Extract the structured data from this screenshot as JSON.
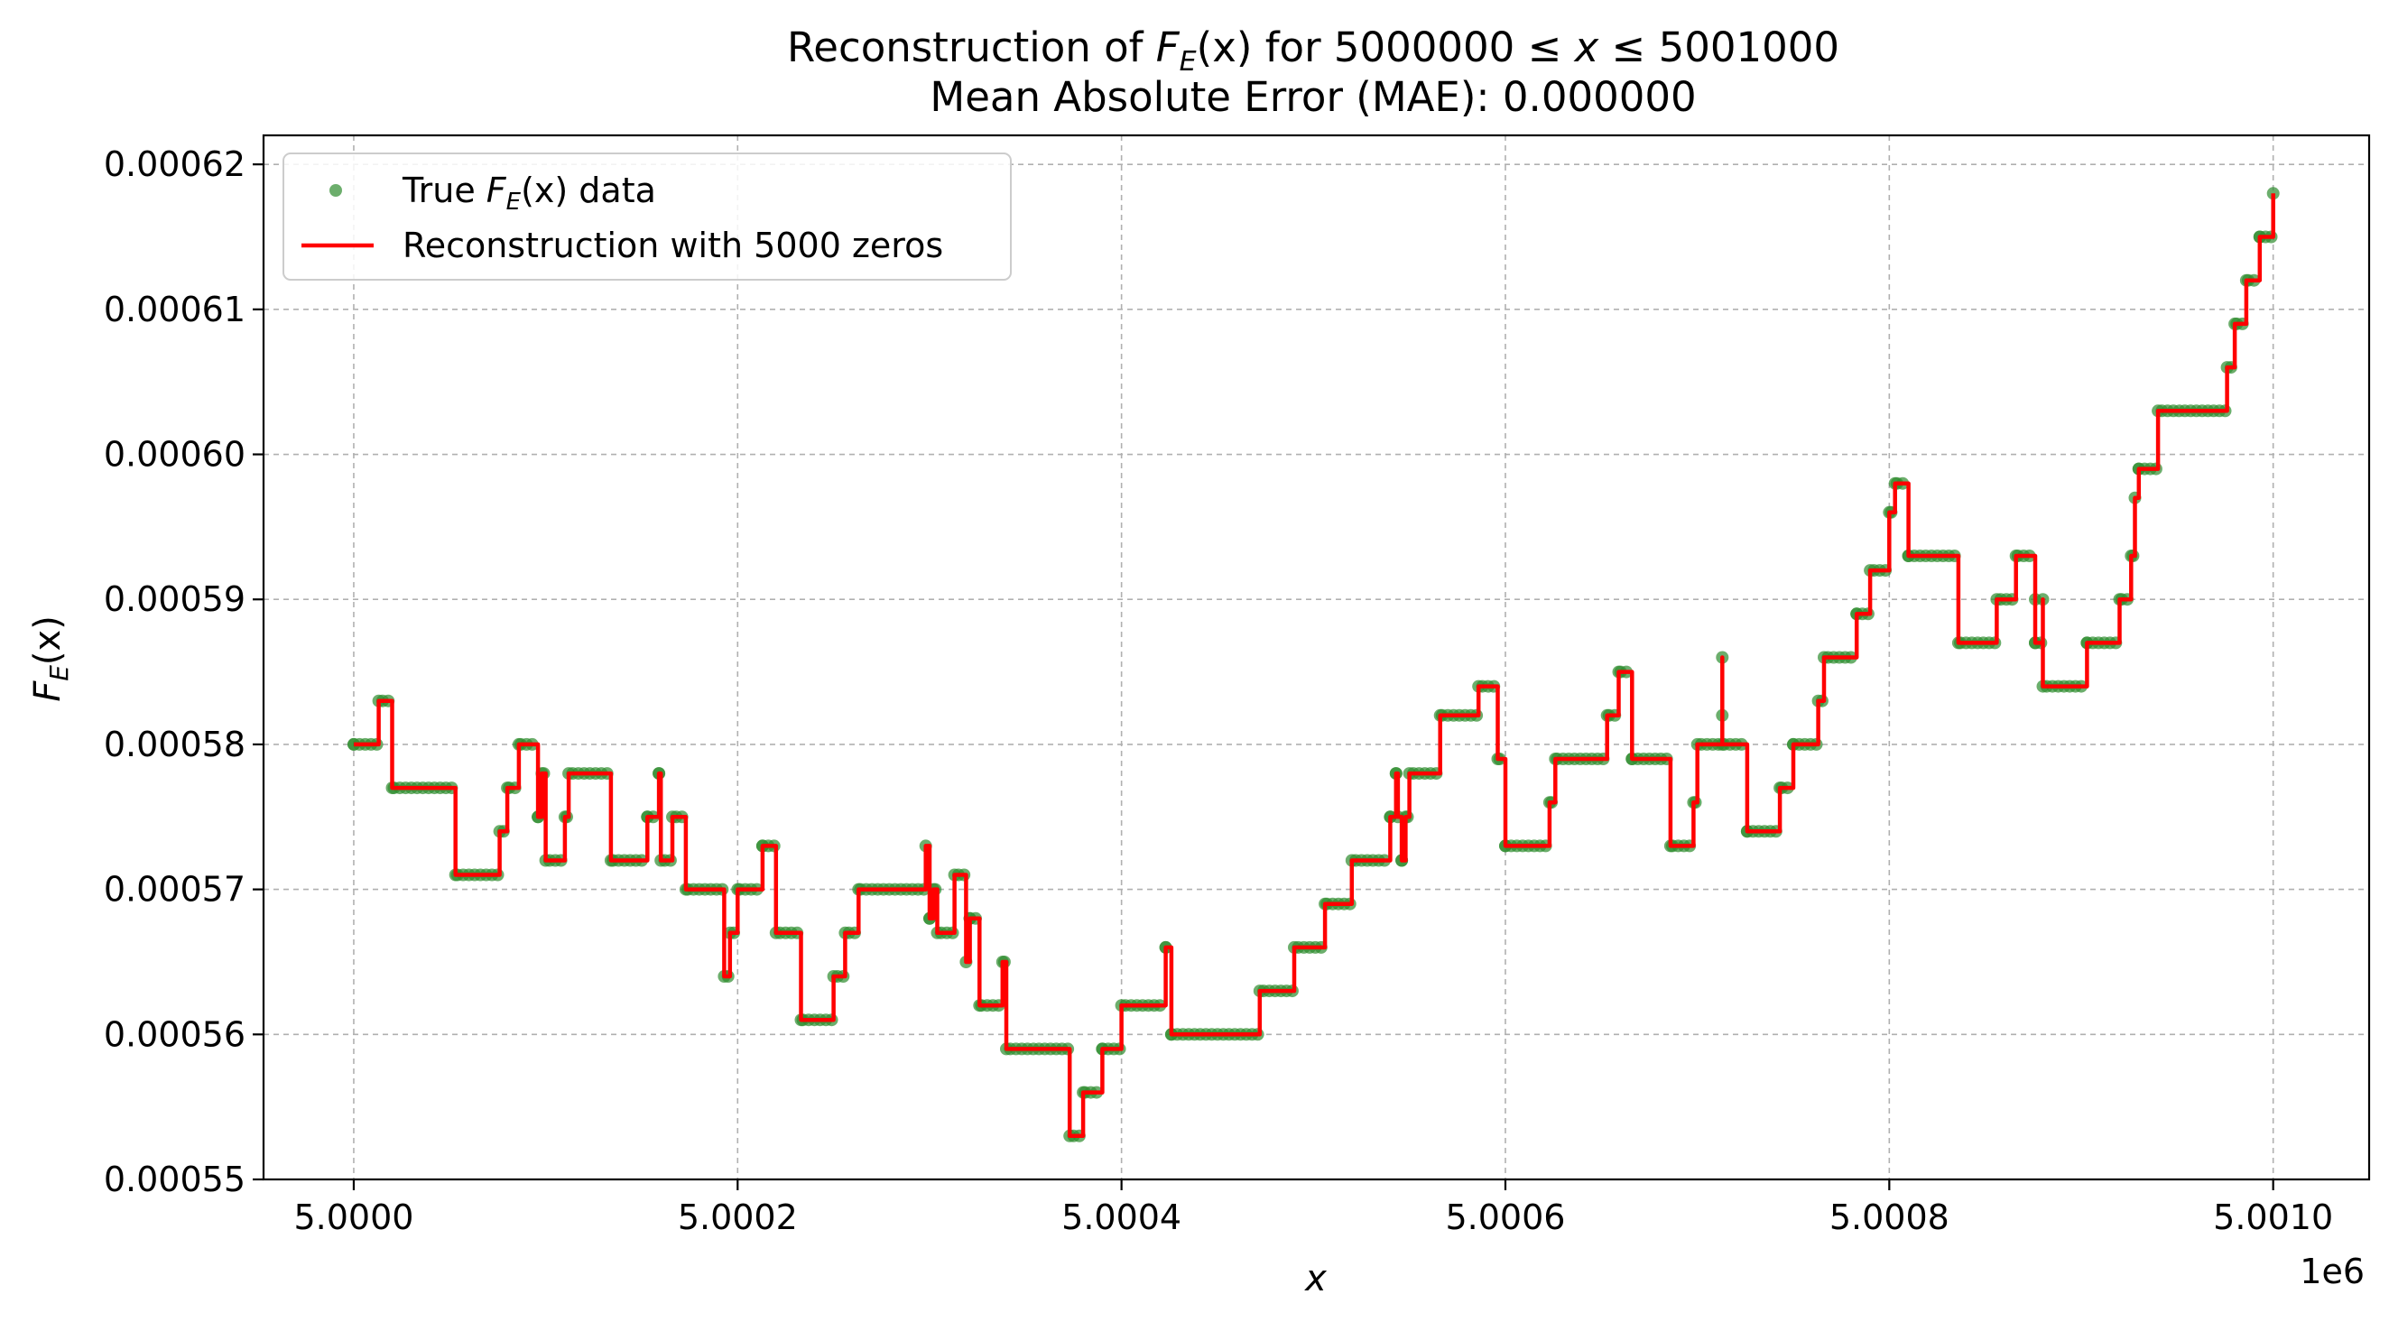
{
  "chart_data": {
    "type": "line",
    "title_prefix": "Reconstruction of ",
    "title_func": "F",
    "title_sub": "E",
    "title_arg": "(x)",
    "title_range": " for 5000000 ≤ ",
    "title_var": "x",
    "title_suffix": " ≤ 5001000",
    "subtitle": "Mean Absolute Error (MAE): 0.000000",
    "xlabel": "x",
    "ylabel_func": "F",
    "ylabel_sub": "E",
    "ylabel_arg": "(x)",
    "x_offset_label": "1e6",
    "xlim": [
      4999953,
      5001050
    ],
    "ylim": [
      0.00055,
      0.000622
    ],
    "x_ticks": [
      5000000,
      5000200,
      5000400,
      5000600,
      5000800,
      5001000
    ],
    "x_tick_labels": [
      "5.0000",
      "5.0002",
      "5.0004",
      "5.0006",
      "5.0008",
      "5.0010"
    ],
    "y_ticks": [
      0.00055,
      0.00056,
      0.00057,
      0.00058,
      0.00059,
      0.0006,
      0.00061,
      0.00062
    ],
    "y_tick_labels": [
      "0.00055",
      "0.00056",
      "0.00057",
      "0.00058",
      "0.00059",
      "0.00060",
      "0.00061",
      "0.00062"
    ],
    "grid": true,
    "legend_position": "upper-left",
    "series": [
      {
        "name_prefix": "True ",
        "name_func": "F",
        "name_sub": "E",
        "name_suffix": "(x) data",
        "kind": "scatter",
        "color": "#2e8b2e"
      },
      {
        "name": "Reconstruction with 5000 zeros",
        "kind": "line",
        "color": "#ff0000"
      }
    ],
    "steps": [
      [
        5000000,
        0.00058
      ],
      [
        5000013,
        0.000583
      ],
      [
        5000020,
        0.000577
      ],
      [
        5000053,
        0.000571
      ],
      [
        5000076,
        0.000574
      ],
      [
        5000080,
        0.000577
      ],
      [
        5000086,
        0.00058
      ],
      [
        5000096,
        0.000575
      ],
      [
        5000098,
        0.000578
      ],
      [
        5000100,
        0.000572
      ],
      [
        5000110,
        0.000575
      ],
      [
        5000112,
        0.000578
      ],
      [
        5000134,
        0.000572
      ],
      [
        5000153,
        0.000575
      ],
      [
        5000159,
        0.000578
      ],
      [
        5000160,
        0.000572
      ],
      [
        5000166,
        0.000575
      ],
      [
        5000173,
        0.00057
      ],
      [
        5000193,
        0.000564
      ],
      [
        5000196,
        0.000567
      ],
      [
        5000200,
        0.00057
      ],
      [
        5000213,
        0.000573
      ],
      [
        5000220,
        0.000567
      ],
      [
        5000233,
        0.000561
      ],
      [
        5000250,
        0.000564
      ],
      [
        5000256,
        0.000567
      ],
      [
        5000263,
        0.00057
      ],
      [
        5000298,
        0.000573
      ],
      [
        5000300,
        0.000568
      ],
      [
        5000302,
        0.00057
      ],
      [
        5000304,
        0.000567
      ],
      [
        5000313,
        0.000571
      ],
      [
        5000319,
        0.000565
      ],
      [
        5000321,
        0.000568
      ],
      [
        5000326,
        0.000562
      ],
      [
        5000338,
        0.000565
      ],
      [
        5000340,
        0.000559
      ],
      [
        5000373,
        0.000553
      ],
      [
        5000380,
        0.000556
      ],
      [
        5000390,
        0.000559
      ],
      [
        5000400,
        0.000562
      ],
      [
        5000423,
        0.000566
      ],
      [
        5000426,
        0.00056
      ],
      [
        5000472,
        0.000563
      ],
      [
        5000490,
        0.000566
      ],
      [
        5000506,
        0.000569
      ],
      [
        5000520,
        0.000572
      ],
      [
        5000540,
        0.000575
      ],
      [
        5000543,
        0.000578
      ],
      [
        5000544,
        0.000575
      ],
      [
        5000546,
        0.000572
      ],
      [
        5000548,
        0.000575
      ],
      [
        5000550,
        0.000578
      ],
      [
        5000566,
        0.000582
      ],
      [
        5000586,
        0.000584
      ],
      [
        5000596,
        0.000579
      ],
      [
        5000600,
        0.000573
      ],
      [
        5000623,
        0.000576
      ],
      [
        5000626,
        0.000579
      ],
      [
        5000653,
        0.000582
      ],
      [
        5000659,
        0.000585
      ],
      [
        5000666,
        0.000579
      ],
      [
        5000686,
        0.000573
      ],
      [
        5000698,
        0.000576
      ],
      [
        5000700,
        0.00058
      ],
      [
        5000713,
        0.000582
      ],
      [
        5000713,
        0.000586
      ],
      [
        5000713,
        0.00058
      ],
      [
        5000726,
        0.000574
      ],
      [
        5000743,
        0.000577
      ],
      [
        5000750,
        0.00058
      ],
      [
        5000763,
        0.000583
      ],
      [
        5000766,
        0.000586
      ],
      [
        5000783,
        0.000589
      ],
      [
        5000790,
        0.000592
      ],
      [
        5000800,
        0.000596
      ],
      [
        5000803,
        0.000598
      ],
      [
        5000810,
        0.000593
      ],
      [
        5000836,
        0.000587
      ],
      [
        5000856,
        0.00059
      ],
      [
        5000866,
        0.000593
      ],
      [
        5000876,
        0.00059
      ],
      [
        5000876,
        0.000587
      ],
      [
        5000880,
        0.00059
      ],
      [
        5000880,
        0.000584
      ],
      [
        5000903,
        0.000587
      ],
      [
        5000920,
        0.00059
      ],
      [
        5000926,
        0.000593
      ],
      [
        5000928,
        0.000597
      ],
      [
        5000930,
        0.000599
      ],
      [
        5000940,
        0.000603
      ],
      [
        5000976,
        0.000606
      ],
      [
        5000980,
        0.000609
      ],
      [
        5000986,
        0.000612
      ],
      [
        5000993,
        0.000615
      ],
      [
        5001000,
        0.000618
      ]
    ]
  }
}
